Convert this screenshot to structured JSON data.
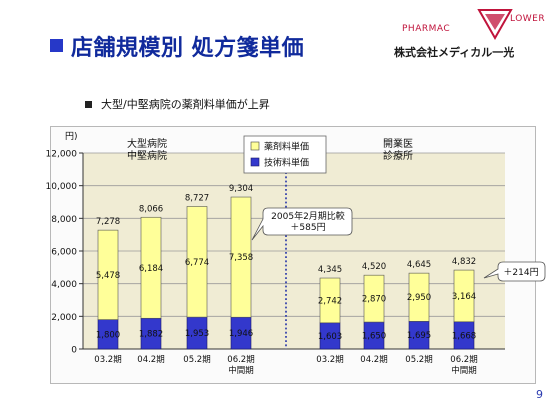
{
  "title": "店舗規模別 処方箋単価",
  "subtitle": "大型/中堅病院の薬剤料単価が上昇",
  "page_number": "9",
  "logo": {
    "brand_left": "PHARMAC",
    "brand_right": "LOWER",
    "company": "株式会社メディカル一光"
  },
  "colors": {
    "drug": "#ffff99",
    "tech": "#3338cc",
    "plot_bg": "#f0ecd4",
    "accent": "#102a9c"
  },
  "chart_data": {
    "type": "bar",
    "stacked": true,
    "unit_label": "円)",
    "ylim": [
      0,
      12000
    ],
    "yticks": [
      0,
      2000,
      4000,
      6000,
      8000,
      10000,
      12000
    ],
    "ytick_labels": [
      "0",
      "2,000",
      "4,000",
      "6,000",
      "8,000",
      "10,000",
      "12,000"
    ],
    "categories": [
      "03.2期",
      "04.2期",
      "05.2期",
      "06.2期\n中間期",
      "03.2期",
      "04.2期",
      "05.2期",
      "06.2期\n中間期"
    ],
    "series": [
      {
        "name": "技術料単価",
        "values": [
          1800,
          1882,
          1953,
          1946,
          1603,
          1650,
          1695,
          1668
        ],
        "labels": [
          "1,800",
          "1,882",
          "1,953",
          "1,946",
          "1,603",
          "1,650",
          "1,695",
          "1,668"
        ]
      },
      {
        "name": "薬剤料単価",
        "values": [
          5478,
          6184,
          6774,
          7358,
          2742,
          2870,
          2950,
          3164
        ],
        "labels": [
          "5,478",
          "6,184",
          "6,774",
          "7,358",
          "2,742",
          "2,870",
          "2,950",
          "3,164"
        ]
      }
    ],
    "totals": [
      7278,
      8066,
      8727,
      9304,
      4345,
      4520,
      4645,
      4832
    ],
    "total_labels": [
      "7,278",
      "8,066",
      "8,727",
      "9,304",
      "4,345",
      "4,520",
      "4,645",
      "4,832"
    ],
    "legend": {
      "position": "top-center",
      "items": [
        "薬剤料単価",
        "技術料単価"
      ]
    },
    "groups": [
      "大型病院\n中堅病院",
      "開業医\n診療所"
    ],
    "annotations": [
      "2005年2月期比較\n＋585円",
      "＋214円"
    ]
  }
}
